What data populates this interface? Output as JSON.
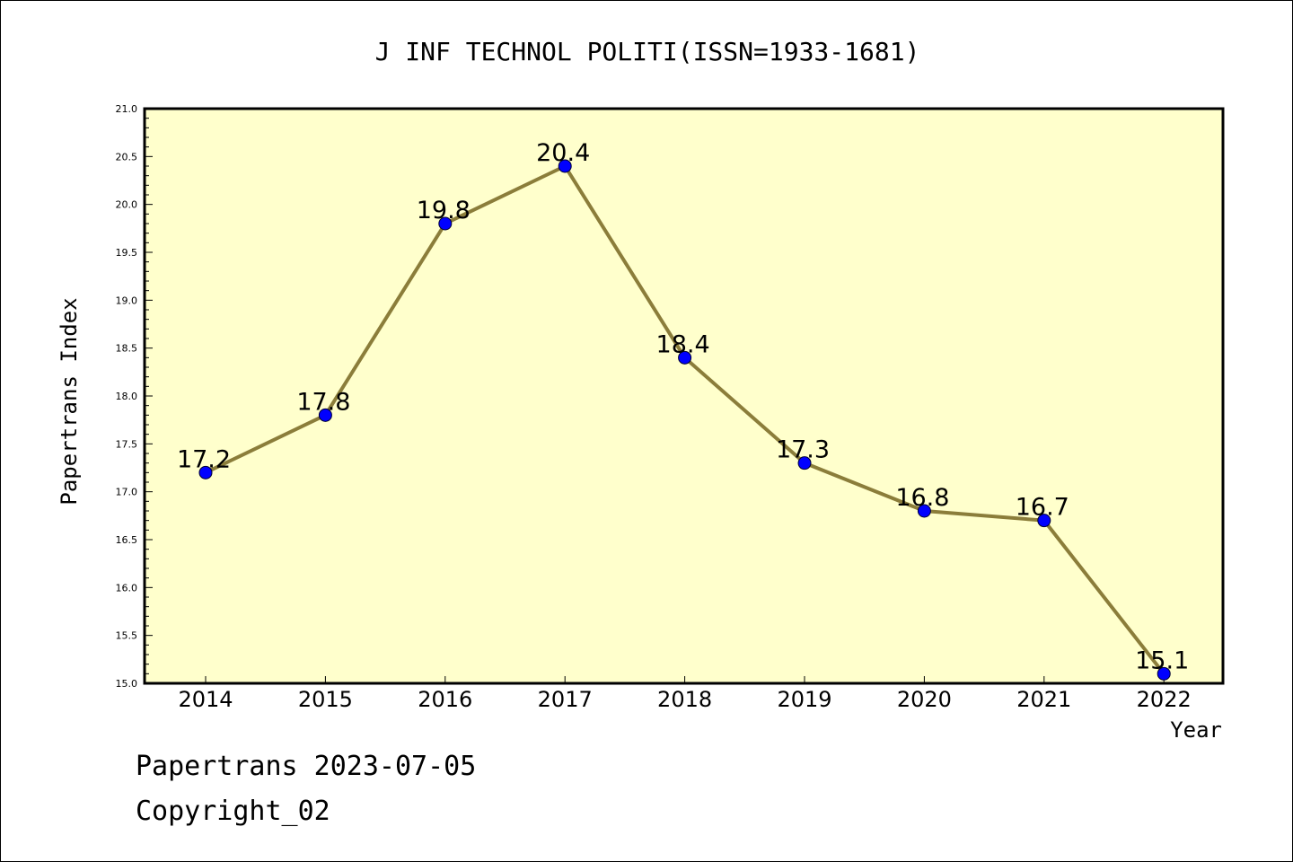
{
  "colors": {
    "plot_background": "#ffffcc",
    "line": "#8b7d3a",
    "marker": "#0000ff",
    "axis": "#000000"
  },
  "chart_data": {
    "type": "line",
    "title": "J INF TECHNOL POLITI(ISSN=1933-1681)",
    "xlabel": "Year",
    "ylabel": "Papertrans Index",
    "categories": [
      "2014",
      "2015",
      "2016",
      "2017",
      "2018",
      "2019",
      "2020",
      "2021",
      "2022"
    ],
    "values": [
      17.2,
      17.8,
      19.8,
      20.4,
      18.4,
      17.3,
      16.8,
      16.7,
      15.1
    ],
    "data_labels": [
      "17.2",
      "17.8",
      "19.8",
      "20.4",
      "18.4",
      "17.3",
      "16.8",
      "16.7",
      "15.1"
    ],
    "ylim": [
      15.0,
      21.0
    ],
    "yticks": [
      "15.0",
      "15.5",
      "16.0",
      "16.5",
      "17.0",
      "17.5",
      "18.0",
      "18.5",
      "19.0",
      "19.5",
      "20.0",
      "20.5",
      "21.0"
    ],
    "grid": false,
    "legend": "none"
  },
  "footer": {
    "date_line": "Papertrans 2023-07-05",
    "copyright_line": "Copyright_02"
  }
}
